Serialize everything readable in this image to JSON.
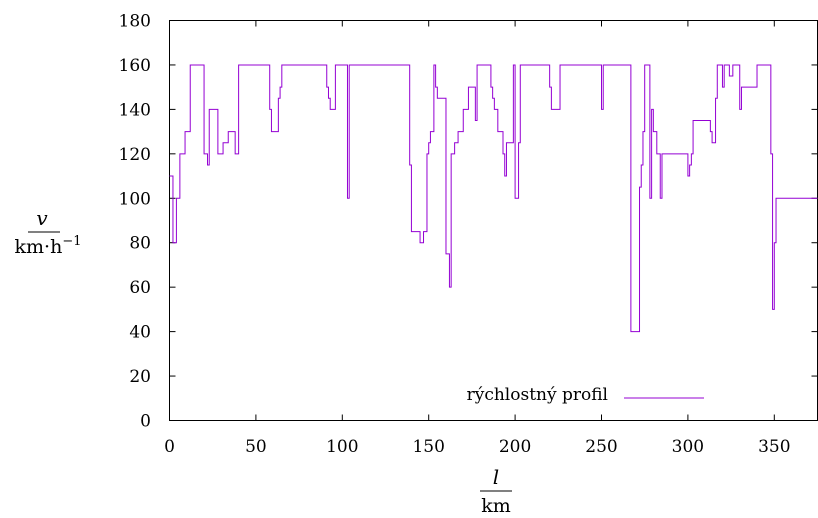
{
  "chart_data": {
    "type": "line",
    "x_axis": {
      "var_label": "l",
      "unit_label": "km",
      "range": [
        0,
        375
      ],
      "ticks": [
        0,
        50,
        100,
        150,
        200,
        250,
        300,
        350
      ],
      "tick_labels": [
        "0",
        "50",
        "100",
        "150",
        "200",
        "250",
        "300",
        "350"
      ]
    },
    "y_axis": {
      "var_label": "v",
      "unit_label": "km·h",
      "unit_exponent": "−1",
      "range": [
        0,
        180
      ],
      "ticks": [
        0,
        20,
        40,
        60,
        80,
        100,
        120,
        140,
        160,
        180
      ],
      "tick_labels": [
        "0",
        "20",
        "40",
        "60",
        "80",
        "100",
        "120",
        "140",
        "160",
        "180"
      ]
    },
    "grid": false,
    "legend": {
      "position": "bottom-center"
    },
    "series": [
      {
        "name": "rýchlostný profil",
        "color": "#9400d3",
        "step": true,
        "x": [
          0,
          2,
          4,
          6,
          7,
          9,
          12,
          20,
          22,
          23,
          28,
          31,
          34,
          38,
          40,
          58,
          59,
          60,
          63,
          64,
          65,
          91,
          92,
          93,
          96,
          103,
          104,
          105,
          139,
          140,
          141,
          145,
          147,
          149,
          150,
          151,
          153,
          154,
          155,
          160,
          162,
          163,
          164,
          165,
          167,
          170,
          173,
          177,
          178,
          179,
          186,
          187,
          188,
          190,
          191,
          193,
          194,
          195,
          196,
          197,
          199,
          200,
          202,
          203,
          205,
          220,
          221,
          226,
          250,
          251,
          252,
          267,
          268,
          272,
          273,
          274,
          275,
          276,
          278,
          279,
          280,
          282,
          284,
          285,
          286,
          300,
          301,
          302,
          303,
          313,
          314,
          316,
          317,
          318,
          320,
          321,
          324,
          326,
          330,
          331,
          333,
          340,
          341,
          348,
          349,
          350,
          351,
          375
        ],
        "y": [
          110,
          80,
          100,
          120,
          120,
          130,
          160,
          120,
          115,
          140,
          120,
          125,
          130,
          120,
          160,
          140,
          130,
          130,
          145,
          150,
          160,
          150,
          145,
          140,
          160,
          100,
          160,
          160,
          115,
          85,
          85,
          80,
          85,
          120,
          125,
          130,
          160,
          150,
          145,
          75,
          60,
          120,
          120,
          125,
          130,
          140,
          150,
          135,
          160,
          160,
          150,
          145,
          140,
          130,
          130,
          120,
          110,
          125,
          125,
          125,
          160,
          100,
          125,
          160,
          160,
          150,
          140,
          160,
          140,
          160,
          160,
          40,
          40,
          105,
          115,
          130,
          160,
          160,
          100,
          140,
          130,
          120,
          100,
          120,
          120,
          110,
          115,
          120,
          135,
          130,
          125,
          145,
          160,
          160,
          150,
          160,
          155,
          160,
          140,
          150,
          150,
          160,
          160,
          120,
          50,
          80,
          100,
          100
        ]
      }
    ]
  }
}
